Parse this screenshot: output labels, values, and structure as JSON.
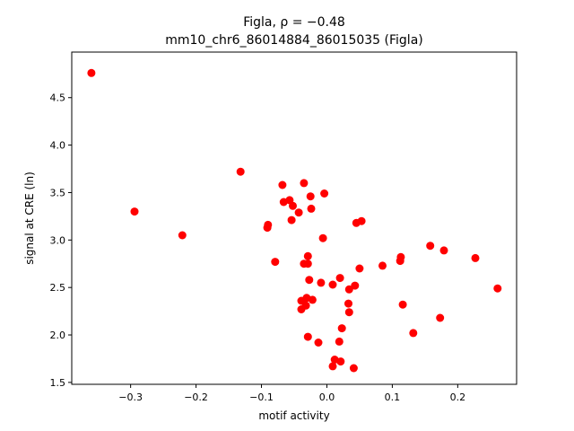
{
  "chart_data": {
    "type": "scatter",
    "title_line1": "Figla, ρ = −0.48",
    "title_line2": "mm10_chr6_86014884_86015035 (Figla)",
    "xlabel": "motif activity",
    "ylabel": "signal at CRE (ln)",
    "xlim": [
      -0.39,
      0.29
    ],
    "ylim": [
      1.48,
      4.98
    ],
    "xticks": [
      -0.3,
      -0.2,
      -0.1,
      0.0,
      0.1,
      0.2
    ],
    "xtick_labels": [
      "−0.3",
      "−0.2",
      "−0.1",
      "0.0",
      "0.1",
      "0.2"
    ],
    "yticks": [
      1.5,
      2.0,
      2.5,
      3.0,
      3.5,
      4.0,
      4.5
    ],
    "ytick_labels": [
      "1.5",
      "2.0",
      "2.5",
      "3.0",
      "3.5",
      "4.0",
      "4.5"
    ],
    "grid": false,
    "marker_color": "#ff0000",
    "points": [
      {
        "x": -0.36,
        "y": 4.76
      },
      {
        "x": -0.294,
        "y": 3.3
      },
      {
        "x": -0.221,
        "y": 3.05
      },
      {
        "x": -0.132,
        "y": 3.72
      },
      {
        "x": -0.09,
        "y": 3.16
      },
      {
        "x": -0.091,
        "y": 3.13
      },
      {
        "x": -0.079,
        "y": 2.77
      },
      {
        "x": -0.068,
        "y": 3.58
      },
      {
        "x": -0.066,
        "y": 3.4
      },
      {
        "x": -0.057,
        "y": 3.42
      },
      {
        "x": -0.052,
        "y": 3.36
      },
      {
        "x": -0.054,
        "y": 3.21
      },
      {
        "x": -0.043,
        "y": 3.29
      },
      {
        "x": -0.035,
        "y": 3.6
      },
      {
        "x": -0.025,
        "y": 3.46
      },
      {
        "x": -0.024,
        "y": 3.33
      },
      {
        "x": -0.004,
        "y": 3.49
      },
      {
        "x": -0.006,
        "y": 3.02
      },
      {
        "x": -0.035,
        "y": 2.75
      },
      {
        "x": -0.029,
        "y": 2.75
      },
      {
        "x": -0.029,
        "y": 2.83
      },
      {
        "x": -0.027,
        "y": 2.58
      },
      {
        "x": -0.009,
        "y": 2.55
      },
      {
        "x": 0.009,
        "y": 2.53
      },
      {
        "x": 0.02,
        "y": 2.6
      },
      {
        "x": -0.039,
        "y": 2.36
      },
      {
        "x": -0.031,
        "y": 2.39
      },
      {
        "x": -0.022,
        "y": 2.37
      },
      {
        "x": -0.032,
        "y": 2.31
      },
      {
        "x": -0.039,
        "y": 2.27
      },
      {
        "x": 0.034,
        "y": 2.48
      },
      {
        "x": 0.043,
        "y": 2.52
      },
      {
        "x": 0.05,
        "y": 2.7
      },
      {
        "x": 0.045,
        "y": 3.18
      },
      {
        "x": 0.053,
        "y": 3.2
      },
      {
        "x": 0.033,
        "y": 2.33
      },
      {
        "x": 0.034,
        "y": 2.24
      },
      {
        "x": 0.023,
        "y": 2.07
      },
      {
        "x": -0.029,
        "y": 1.98
      },
      {
        "x": -0.013,
        "y": 1.92
      },
      {
        "x": 0.019,
        "y": 1.93
      },
      {
        "x": 0.012,
        "y": 1.74
      },
      {
        "x": 0.021,
        "y": 1.72
      },
      {
        "x": 0.009,
        "y": 1.67
      },
      {
        "x": 0.041,
        "y": 1.65
      },
      {
        "x": 0.085,
        "y": 2.73
      },
      {
        "x": 0.112,
        "y": 2.78
      },
      {
        "x": 0.113,
        "y": 2.82
      },
      {
        "x": 0.116,
        "y": 2.32
      },
      {
        "x": 0.132,
        "y": 2.02
      },
      {
        "x": 0.158,
        "y": 2.94
      },
      {
        "x": 0.173,
        "y": 2.18
      },
      {
        "x": 0.179,
        "y": 2.89
      },
      {
        "x": 0.227,
        "y": 2.81
      },
      {
        "x": 0.261,
        "y": 2.49
      }
    ]
  }
}
